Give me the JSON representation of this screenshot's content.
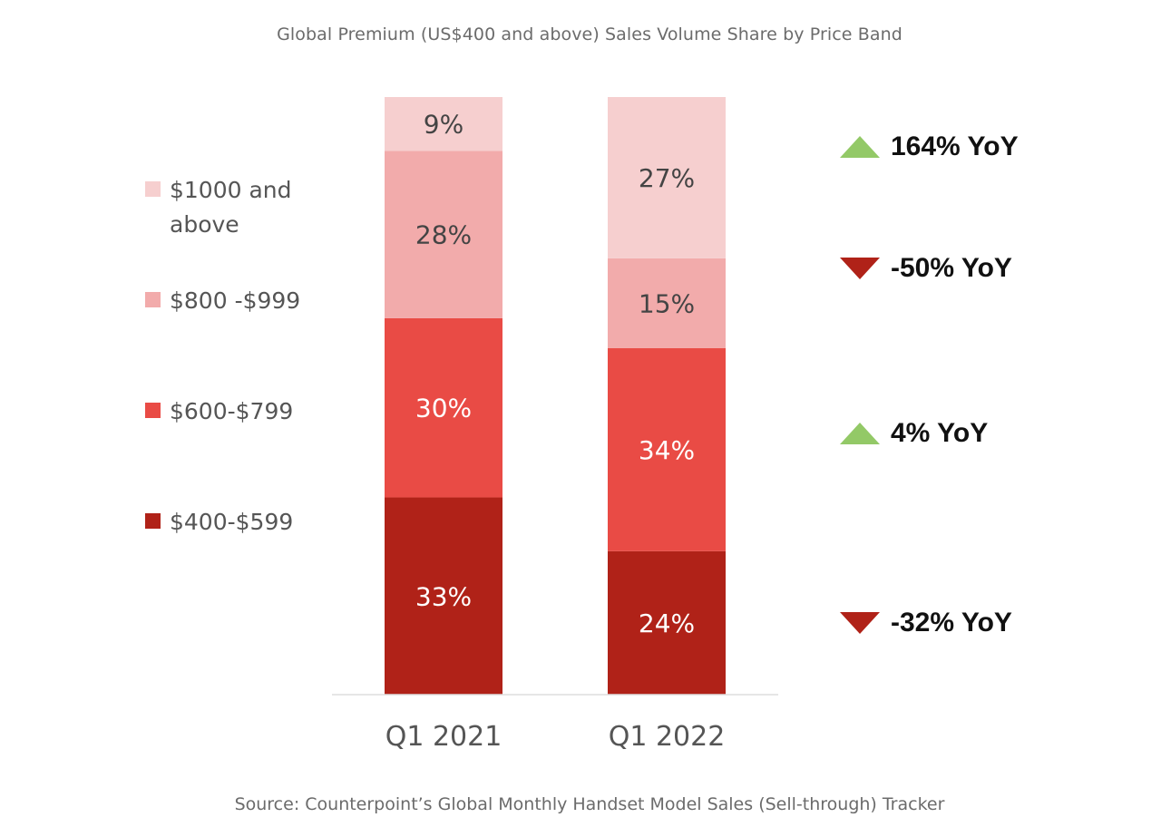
{
  "chart_data": {
    "type": "bar",
    "stacked": true,
    "title": "Global Premium (US$400 and above) Sales Volume Share by Price Band",
    "source": "Source: Counterpoint’s Global Monthly Handset Model Sales (Sell-through) Tracker",
    "categories": [
      "Q1 2021",
      "Q1 2022"
    ],
    "xlabel": "",
    "ylabel": "",
    "ylim": [
      0,
      100
    ],
    "unit": "%",
    "grid": false,
    "legend_position": "left",
    "series": [
      {
        "name": "$400-$599",
        "values": [
          33,
          24
        ],
        "color": "#b02218",
        "label_color": "#ffffff"
      },
      {
        "name": "$600-$799",
        "values": [
          30,
          34
        ],
        "color": "#e94b45",
        "label_color": "#ffffff"
      },
      {
        "name": "$800 -$999",
        "values": [
          28,
          15
        ],
        "color": "#f2abab",
        "label_color": "#444444"
      },
      {
        "name": "$1000 and above",
        "values": [
          9,
          27
        ],
        "color": "#f6cfcf",
        "label_color": "#444444"
      }
    ],
    "legend": [
      {
        "label": "$1000 and above",
        "color": "#f6cfcf"
      },
      {
        "label": "$800 -$999",
        "color": "#f2abab"
      },
      {
        "label": "$600-$799",
        "color": "#e94b45"
      },
      {
        "label": "$400-$599",
        "color": "#b02218"
      }
    ],
    "annotations": [
      {
        "series": "$1000 and above",
        "direction": "up",
        "text": "164% YoY",
        "value": 164,
        "color": "#93c967"
      },
      {
        "series": "$800 -$999",
        "direction": "down",
        "text": "-50% YoY",
        "value": -50,
        "color": "#b02218"
      },
      {
        "series": "$600-$799",
        "direction": "up",
        "text": "4% YoY",
        "value": 4,
        "color": "#93c967"
      },
      {
        "series": "$400-$599",
        "direction": "down",
        "text": "-32% YoY",
        "value": -32,
        "color": "#b02218"
      }
    ]
  }
}
